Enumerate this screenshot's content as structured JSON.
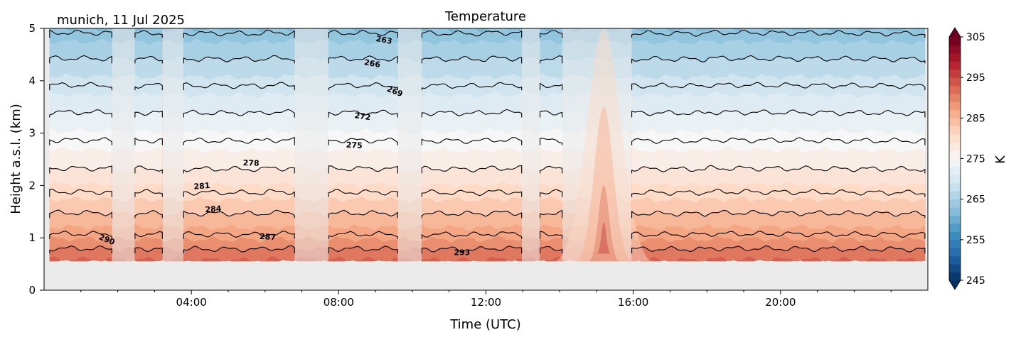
{
  "chart_data": {
    "type": "heatmap",
    "subtype": "filled-contour",
    "title": "Temperature",
    "location_date": "munich, 11 Jul 2025",
    "xlabel": "Time (UTC)",
    "ylabel": "Height a.s.l. (km)",
    "xlim_hours": [
      0,
      24
    ],
    "ylim_km": [
      0,
      5
    ],
    "xticks": [
      {
        "hour": 4,
        "label": "04:00"
      },
      {
        "hour": 8,
        "label": "08:00"
      },
      {
        "hour": 12,
        "label": "12:00"
      },
      {
        "hour": 16,
        "label": "16:00"
      },
      {
        "hour": 20,
        "label": "20:00"
      }
    ],
    "yticks": [
      {
        "value": 0,
        "label": "0"
      },
      {
        "value": 1,
        "label": "1"
      },
      {
        "value": 2,
        "label": "2"
      },
      {
        "value": 3,
        "label": "3"
      },
      {
        "value": 4,
        "label": "4"
      },
      {
        "value": 5,
        "label": "5"
      }
    ],
    "data_bottom_km": 0.55,
    "colorbar": {
      "label": "K",
      "range": [
        245,
        305
      ],
      "step": 2,
      "colormap": "RdBu_r",
      "extend": "both",
      "ticks": [
        {
          "value": 305,
          "label": "305"
        },
        {
          "value": 295,
          "label": "295"
        },
        {
          "value": 285,
          "label": "285"
        },
        {
          "value": 275,
          "label": "275"
        },
        {
          "value": 265,
          "label": "265"
        },
        {
          "value": 255,
          "label": "255"
        },
        {
          "value": 245,
          "label": "245"
        }
      ]
    },
    "profile": [
      {
        "temp": 292.5,
        "height_km": 0.55
      },
      {
        "temp": 290,
        "height_km": 0.8
      },
      {
        "temp": 287,
        "height_km": 1.08
      },
      {
        "temp": 284,
        "height_km": 1.48
      },
      {
        "temp": 281,
        "height_km": 1.88
      },
      {
        "temp": 278,
        "height_km": 2.33
      },
      {
        "temp": 275,
        "height_km": 2.87
      },
      {
        "temp": 272,
        "height_km": 3.4
      },
      {
        "temp": 269,
        "height_km": 3.92
      },
      {
        "temp": 266,
        "height_km": 4.43
      },
      {
        "temp": 263,
        "height_km": 4.92
      },
      {
        "temp": 262,
        "height_km": 5.0
      }
    ],
    "contour_levels": [
      263,
      266,
      269,
      272,
      275,
      278,
      281,
      284,
      287,
      290,
      293
    ],
    "valid_segments_hours": [
      [
        0.15,
        1.84
      ],
      [
        2.47,
        3.21
      ],
      [
        3.79,
        6.8
      ],
      [
        7.73,
        9.6
      ],
      [
        10.26,
        12.97
      ],
      [
        13.47,
        14.07
      ],
      [
        15.96,
        23.92
      ]
    ],
    "gap_segments_hours": [
      [
        1.84,
        2.47
      ],
      [
        3.21,
        3.79
      ],
      [
        6.8,
        7.73
      ],
      [
        9.6,
        10.26
      ],
      [
        12.97,
        13.47
      ],
      [
        14.07,
        15.96
      ]
    ],
    "warm_plume": {
      "center_hour": 15.2,
      "peak_temp": 296
    },
    "contour_labels": [
      {
        "text": "263",
        "hour": 9.22,
        "height_km": 4.73,
        "angle": 10
      },
      {
        "text": "266",
        "hour": 8.9,
        "height_km": 4.28,
        "angle": 10
      },
      {
        "text": "269",
        "hour": 9.5,
        "height_km": 3.75,
        "angle": 22
      },
      {
        "text": "272",
        "hour": 8.64,
        "height_km": 3.27,
        "angle": 8
      },
      {
        "text": "275",
        "hour": 8.42,
        "height_km": 2.72,
        "angle": 3
      },
      {
        "text": "278",
        "hour": 5.62,
        "height_km": 2.38,
        "angle": 2
      },
      {
        "text": "281",
        "hour": 4.29,
        "height_km": 1.94,
        "angle": -4
      },
      {
        "text": "284",
        "hour": 4.6,
        "height_km": 1.5,
        "angle": -4
      },
      {
        "text": "287",
        "hour": 6.07,
        "height_km": 0.97,
        "angle": 3
      },
      {
        "text": "290",
        "hour": 1.68,
        "height_km": 0.92,
        "angle": 22
      },
      {
        "text": "293",
        "hour": 11.35,
        "height_km": 0.67,
        "angle": 0
      }
    ],
    "grid": false
  }
}
